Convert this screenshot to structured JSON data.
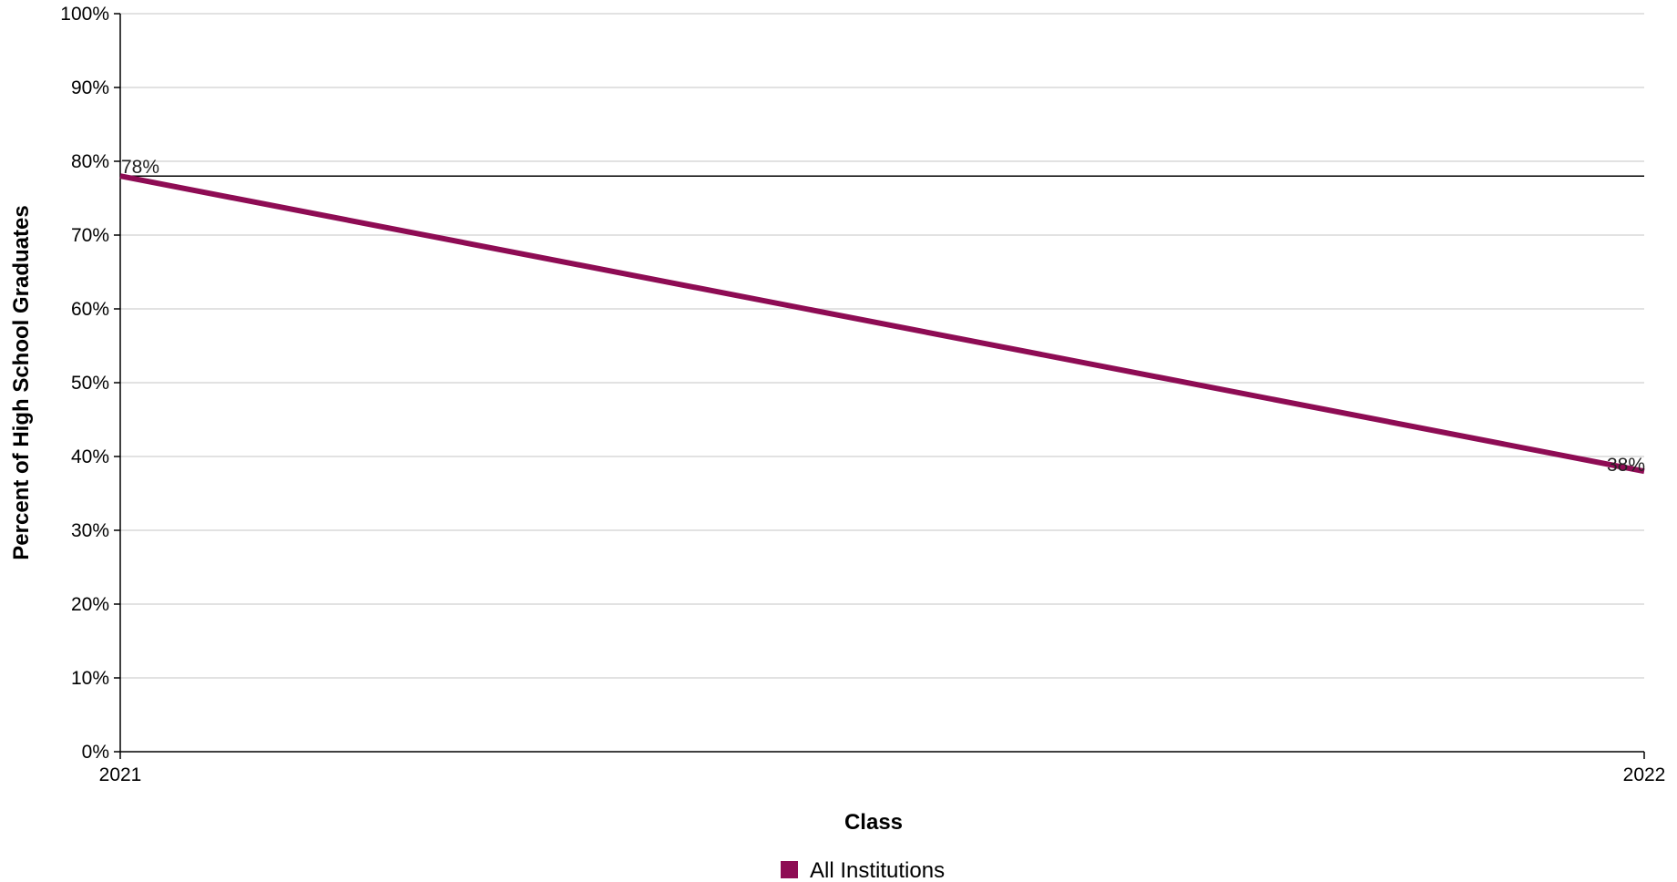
{
  "chart_data": {
    "type": "line",
    "title": "",
    "xlabel": "Class",
    "ylabel": "Percent of High School Graduates",
    "categories": [
      "2021",
      "2022"
    ],
    "y_ticks": [
      "0%",
      "10%",
      "20%",
      "30%",
      "40%",
      "50%",
      "60%",
      "70%",
      "80%",
      "90%",
      "100%"
    ],
    "ylim": [
      0,
      100
    ],
    "grid": true,
    "legend_position": "bottom-center",
    "reference_line": 78,
    "series": [
      {
        "name": "All Institutions",
        "color": "#8e0c54",
        "values": [
          78,
          38
        ],
        "labels": [
          "78%",
          "38%"
        ]
      }
    ]
  }
}
